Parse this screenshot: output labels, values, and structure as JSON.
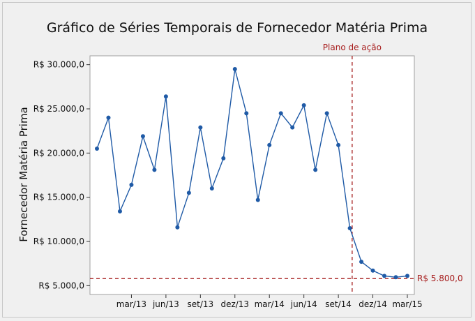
{
  "chart_data": {
    "type": "line",
    "title": "Gráfico de Séries Temporais de Fornecedor Matéria Prima",
    "xlabel": "",
    "ylabel": "Fornecedor Matéria Prima",
    "x_tick_labels": [
      "mar/13",
      "jun/13",
      "set/13",
      "dez/13",
      "mar/14",
      "jun/14",
      "set/14",
      "dez/14",
      "mar/15"
    ],
    "x_tick_index": [
      3,
      6,
      9,
      12,
      15,
      18,
      21,
      24,
      27
    ],
    "ylim": [
      4000,
      31000
    ],
    "y_ticks": [
      5000,
      10000,
      15000,
      20000,
      25000,
      30000
    ],
    "y_tick_labels": [
      "R$ 5.000,0",
      "R$ 10.000,0",
      "R$ 15.000,0",
      "R$ 20.000,0",
      "R$ 25.000,0",
      "R$ 30.000,0"
    ],
    "series": [
      {
        "values": [
          20500,
          24000,
          13400,
          16400,
          21900,
          18100,
          26400,
          11600,
          15500,
          22900,
          16000,
          19400,
          29500,
          24500,
          14700,
          20900,
          24500,
          22900,
          25400,
          18100,
          24500,
          20900,
          11500,
          7700,
          6700,
          6100,
          5950,
          6100
        ],
        "color": "#1f5aa6"
      }
    ],
    "reference_lines": [
      {
        "orientation": "vertical",
        "at_index": 22.2,
        "label": "Plano de ação",
        "color": "#a61c1c"
      },
      {
        "orientation": "horizontal",
        "value": 5800,
        "label": "R$ 5.800,0",
        "color": "#a61c1c"
      }
    ],
    "grid": false
  }
}
